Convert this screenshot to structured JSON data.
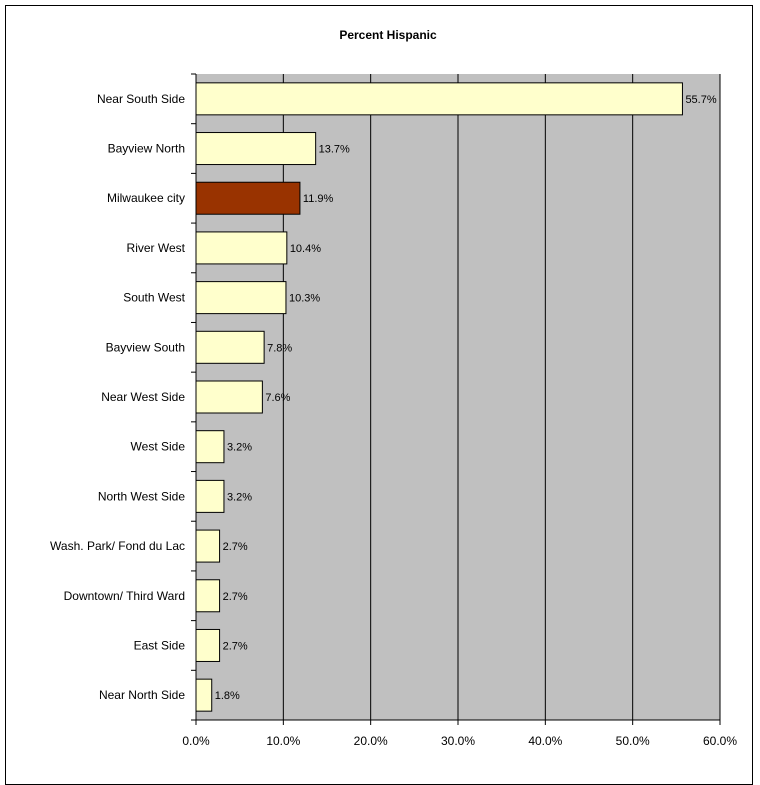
{
  "chart_data": {
    "type": "bar",
    "orientation": "horizontal",
    "title": "Percent Hispanic",
    "xlabel": "",
    "ylabel": "",
    "xlim": [
      0,
      60
    ],
    "xticks": [
      0,
      10,
      20,
      30,
      40,
      50,
      60
    ],
    "xtick_labels": [
      "0.0%",
      "10.0%",
      "20.0%",
      "30.0%",
      "40.0%",
      "50.0%",
      "60.0%"
    ],
    "grid": "vertical major gridlines",
    "legend": "none",
    "plot_background": "#C0C0C0",
    "bar_color": "#FFFFCC",
    "highlight_color": "#993300",
    "categories": [
      "Near South Side",
      "Bayview North",
      "Milwaukee city",
      "River West",
      "South West",
      "Bayview South",
      "Near West Side",
      "West Side",
      "North West Side",
      "Wash. Park/ Fond du Lac",
      "Downtown/ Third Ward",
      "East Side",
      "Near North Side"
    ],
    "values": [
      55.7,
      13.7,
      11.9,
      10.4,
      10.3,
      7.8,
      7.6,
      3.2,
      3.2,
      2.7,
      2.7,
      2.7,
      1.8
    ],
    "value_labels": [
      "55.7%",
      "13.7%",
      "11.9%",
      "10.4%",
      "10.3%",
      "7.8%",
      "7.6%",
      "3.2%",
      "3.2%",
      "2.7%",
      "2.7%",
      "2.7%",
      "1.8%"
    ],
    "highlighted_category": "Milwaukee city"
  }
}
